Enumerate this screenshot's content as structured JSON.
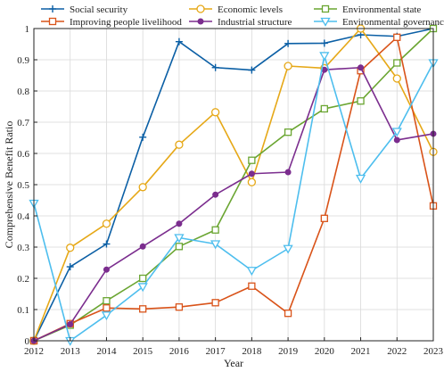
{
  "chart_data": {
    "type": "line",
    "title": "",
    "xlabel": "Year",
    "ylabel": "Comprehensive Benefit Ratio",
    "x": [
      2012,
      2013,
      2014,
      2015,
      2016,
      2017,
      2018,
      2019,
      2020,
      2021,
      2022,
      2023
    ],
    "xlim": [
      2012,
      2023
    ],
    "ylim": [
      0,
      1
    ],
    "yticks": [
      0,
      0.1,
      0.2,
      0.3,
      0.4,
      0.5,
      0.6,
      0.7,
      0.8,
      0.9,
      1
    ],
    "grid": true,
    "legend_placement": "top",
    "series": [
      {
        "name": "Social security",
        "color": "#0b5fa5",
        "marker": "plus",
        "values": [
          0,
          0.237,
          0.31,
          0.652,
          0.958,
          0.875,
          0.867,
          0.952,
          0.953,
          0.98,
          0.975,
          1.0
        ]
      },
      {
        "name": "Economic levels",
        "color": "#e6a817",
        "marker": "circle",
        "values": [
          0,
          0.298,
          0.375,
          0.492,
          0.628,
          0.732,
          0.508,
          0.88,
          0.873,
          1.0,
          0.84,
          0.605
        ]
      },
      {
        "name": "Environmental state",
        "color": "#6aa531",
        "marker": "square",
        "values": [
          0,
          0.05,
          0.128,
          0.2,
          0.302,
          0.355,
          0.578,
          0.668,
          0.743,
          0.768,
          0.89,
          1.0
        ]
      },
      {
        "name": "Improving people livelihood",
        "color": "#d95319",
        "marker": "square",
        "values": [
          0,
          0.055,
          0.105,
          0.102,
          0.108,
          0.122,
          0.175,
          0.088,
          0.392,
          0.865,
          0.972,
          0.432
        ]
      },
      {
        "name": "Industrial structure",
        "color": "#7b2d8e",
        "marker": "dot",
        "values": [
          0,
          0.053,
          0.228,
          0.302,
          0.375,
          0.468,
          0.535,
          0.54,
          0.868,
          0.875,
          0.643,
          0.663
        ]
      },
      {
        "name": "Environmental governance",
        "color": "#4dbeee",
        "marker": "triangle-down",
        "values": [
          0.44,
          0,
          0.082,
          0.173,
          0.33,
          0.31,
          0.225,
          0.295,
          0.913,
          0.52,
          0.67,
          0.89
        ]
      }
    ]
  }
}
